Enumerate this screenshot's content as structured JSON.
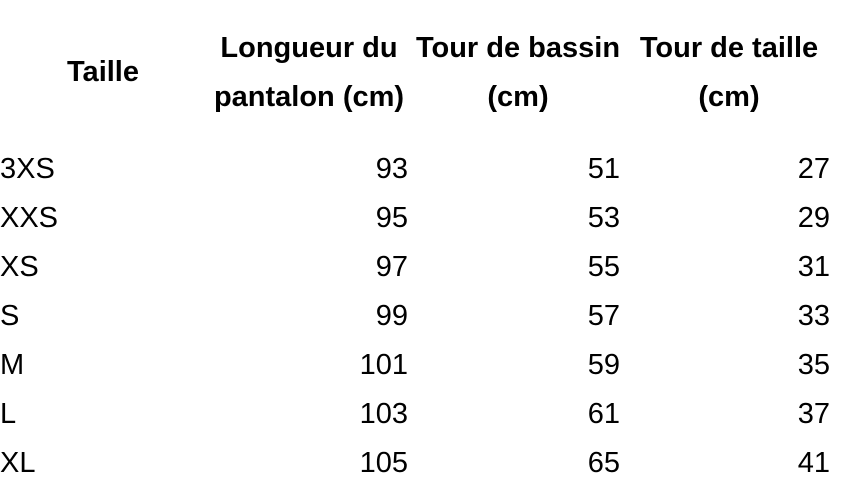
{
  "headers": [
    "Taille",
    "Longueur du pantalon (cm)",
    "Tour de bassin (cm)",
    "Tour de taille (cm)"
  ],
  "rows": [
    [
      "3XS",
      "93",
      "51",
      "27"
    ],
    [
      "XXS",
      "95",
      "53",
      "29"
    ],
    [
      "XS",
      "97",
      "55",
      "31"
    ],
    [
      "S",
      "99",
      "57",
      "33"
    ],
    [
      "M",
      "101",
      "59",
      "35"
    ],
    [
      "L",
      "103",
      "61",
      "37"
    ],
    [
      "XL",
      "105",
      "65",
      "41"
    ]
  ]
}
